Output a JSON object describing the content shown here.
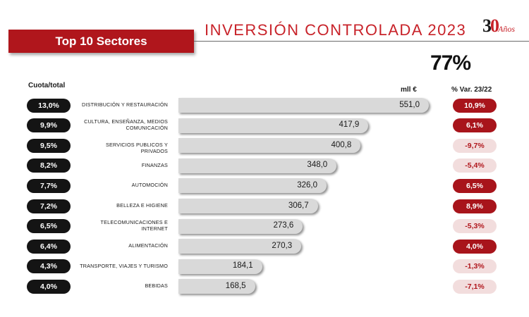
{
  "header": {
    "banner": "Top 10 Sectores",
    "title": "INVERSIÓN CONTROLADA 2023",
    "logo_number_3": "3",
    "logo_number_0": "0",
    "logo_text": "Años",
    "big_percent": "77%"
  },
  "column_headers": {
    "share": "Cuota/total",
    "value": "mll €",
    "variation": "% Var. 23/22"
  },
  "colors": {
    "accent_red": "#b0161c",
    "positive_pill": "#a8141b",
    "negative_pill": "#f2dddd",
    "share_pill": "#141414",
    "bar_fill": "#d9d9d9"
  },
  "chart_data": {
    "type": "bar",
    "orientation": "horizontal",
    "ylim": [
      0,
      551
    ],
    "categories": [
      "DISTRIBUCIÓN Y RESTAURACIÓN",
      "CULTURA, ENSEÑANZA, MEDIOS COMUNICACIÓN",
      "SERVICIOS PUBLICOS Y PRIVADOS",
      "FINANZAS",
      "AUTOMOCIÓN",
      "BELLEZA E HIGIENE",
      "TELECOMUNICACIONES E INTERNET",
      "ALIMENTACIÓN",
      "TRANSPORTE, VIAJES Y TURISMO",
      "BEBIDAS"
    ],
    "category_lines": [
      [
        "DISTRIBUCIÓN Y RESTAURACIÓN"
      ],
      [
        "CULTURA, ENSEÑANZA, MEDIOS",
        "COMUNICACIÓN"
      ],
      [
        "SERVICIOS PUBLICOS Y PRIVADOS"
      ],
      [
        "FINANZAS"
      ],
      [
        "AUTOMOCIÓN"
      ],
      [
        "BELLEZA E HIGIENE"
      ],
      [
        "TELECOMUNICACIONES E",
        "INTERNET"
      ],
      [
        "ALIMENTACIÓN"
      ],
      [
        "TRANSPORTE, VIAJES Y TURISMO"
      ],
      [
        "BEBIDAS"
      ]
    ],
    "values": [
      551.0,
      417.9,
      400.8,
      348.0,
      326.0,
      306.7,
      273.6,
      270.3,
      184.1,
      168.5
    ],
    "value_labels": [
      "551,0",
      "417,9",
      "400,8",
      "348,0",
      "326,0",
      "306,7",
      "273,6",
      "270,3",
      "184,1",
      "168,5"
    ],
    "share_labels": [
      "13,0%",
      "9,9%",
      "9,5%",
      "8,2%",
      "7,7%",
      "7,2%",
      "6,5%",
      "6,4%",
      "4,3%",
      "4,0%"
    ],
    "variation_values": [
      10.9,
      6.1,
      -9.7,
      -5.4,
      6.5,
      8.9,
      -5.3,
      4.0,
      -1.3,
      -7.1
    ],
    "variation_labels": [
      "10,9%",
      "6,1%",
      "-9,7%",
      "-5,4%",
      "6,5%",
      "8,9%",
      "-5,3%",
      "4,0%",
      "-1,3%",
      "-7,1%"
    ]
  }
}
